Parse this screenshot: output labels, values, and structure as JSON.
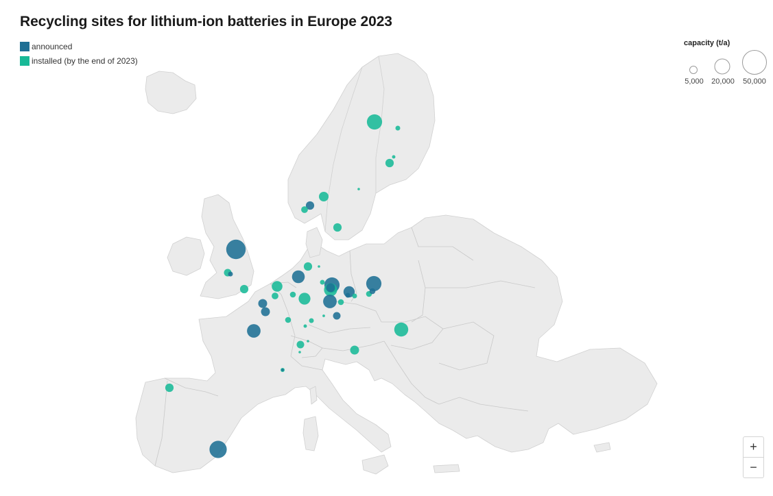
{
  "title": "Recycling sites for lithium-ion batteries in Europe 2023",
  "legend": {
    "announced": {
      "label": "announced",
      "color": "#1e6f94"
    },
    "installed": {
      "label": "installed (by the end of 2023)",
      "color": "#18b997"
    }
  },
  "size_legend": {
    "title": "capacity (t/a)",
    "items": [
      {
        "label": "5,000",
        "capacity": 5000
      },
      {
        "label": "20,000",
        "capacity": 20000
      },
      {
        "label": "50,000",
        "capacity": 50000
      }
    ]
  },
  "zoom": {
    "in_label": "+",
    "out_label": "−"
  },
  "sites": [
    {
      "status": "installed",
      "capacity": 20000,
      "region": "northern Sweden"
    },
    {
      "status": "installed",
      "capacity": 2000,
      "region": "northern Finland"
    },
    {
      "status": "installed",
      "capacity": 1000,
      "region": "central Finland"
    },
    {
      "status": "installed",
      "capacity": 6000,
      "region": "central Finland"
    },
    {
      "status": "installed",
      "capacity": 200,
      "region": "eastern Sweden"
    },
    {
      "status": "installed",
      "capacity": 8000,
      "region": "southern Norway"
    },
    {
      "status": "announced",
      "capacity": 6000,
      "region": "southern Norway"
    },
    {
      "status": "installed",
      "capacity": 4000,
      "region": "southern Norway"
    },
    {
      "status": "installed",
      "capacity": 6000,
      "region": "southern Sweden"
    },
    {
      "status": "announced",
      "capacity": 33000,
      "region": "northern England"
    },
    {
      "status": "installed",
      "capacity": 5000,
      "region": "English Midlands"
    },
    {
      "status": "announced",
      "capacity": 2000,
      "region": "English Midlands"
    },
    {
      "status": "installed",
      "capacity": 6000,
      "region": "southern England"
    },
    {
      "status": "installed",
      "capacity": 6000,
      "region": "northern Germany"
    },
    {
      "status": "installed",
      "capacity": 200,
      "region": "northern Germany"
    },
    {
      "status": "announced",
      "capacity": 14000,
      "region": "Netherlands"
    },
    {
      "status": "installed",
      "capacity": 10000,
      "region": "Belgium"
    },
    {
      "status": "installed",
      "capacity": 4000,
      "region": "Belgium"
    },
    {
      "status": "installed",
      "capacity": 3000,
      "region": "western Germany"
    },
    {
      "status": "installed",
      "capacity": 12000,
      "region": "western Germany"
    },
    {
      "status": "announced",
      "capacity": 7000,
      "region": "northern France"
    },
    {
      "status": "announced",
      "capacity": 7000,
      "region": "northern France"
    },
    {
      "status": "announced",
      "capacity": 16000,
      "region": "western France"
    },
    {
      "status": "installed",
      "capacity": 3000,
      "region": "north-eastern France"
    },
    {
      "status": "installed",
      "capacity": 2000,
      "region": "south-western Germany"
    },
    {
      "status": "installed",
      "capacity": 1000,
      "region": "south-western Germany"
    },
    {
      "status": "installed",
      "capacity": 600,
      "region": "southern Germany"
    },
    {
      "status": "announced",
      "capacity": 5000,
      "region": "southern Germany"
    },
    {
      "status": "installed",
      "capacity": 5000,
      "region": "Switzerland"
    },
    {
      "status": "installed",
      "capacity": 200,
      "region": "Switzerland"
    },
    {
      "status": "installed",
      "capacity": 500,
      "region": "Switzerland"
    },
    {
      "status": "installed",
      "capacity": 1500,
      "region": "south-eastern France"
    },
    {
      "status": "announced",
      "capacity": 600,
      "region": "south-eastern France"
    },
    {
      "status": "installed",
      "capacity": 2000,
      "region": "central Germany"
    },
    {
      "status": "announced",
      "capacity": 20000,
      "region": "central Germany"
    },
    {
      "status": "installed",
      "capacity": 15000,
      "region": "central Germany"
    },
    {
      "status": "announced",
      "capacity": 7000,
      "region": "central Germany"
    },
    {
      "status": "announced",
      "capacity": 16000,
      "region": "eastern Germany"
    },
    {
      "status": "installed",
      "capacity": 3000,
      "region": "eastern Germany"
    },
    {
      "status": "announced",
      "capacity": 2000,
      "region": "eastern Germany"
    },
    {
      "status": "announced",
      "capacity": 11000,
      "region": "eastern Germany"
    },
    {
      "status": "installed",
      "capacity": 2000,
      "region": "eastern Germany"
    },
    {
      "status": "announced",
      "capacity": 20000,
      "region": "Poland"
    },
    {
      "status": "installed",
      "capacity": 3000,
      "region": "Poland"
    },
    {
      "status": "announced",
      "capacity": 3000,
      "region": "Poland"
    },
    {
      "status": "installed",
      "capacity": 17000,
      "region": "Hungary"
    },
    {
      "status": "installed",
      "capacity": 7000,
      "region": "Slovenia"
    },
    {
      "status": "installed",
      "capacity": 6000,
      "region": "north-western Spain"
    },
    {
      "status": "announced",
      "capacity": 26000,
      "region": "south-eastern Spain"
    }
  ]
}
